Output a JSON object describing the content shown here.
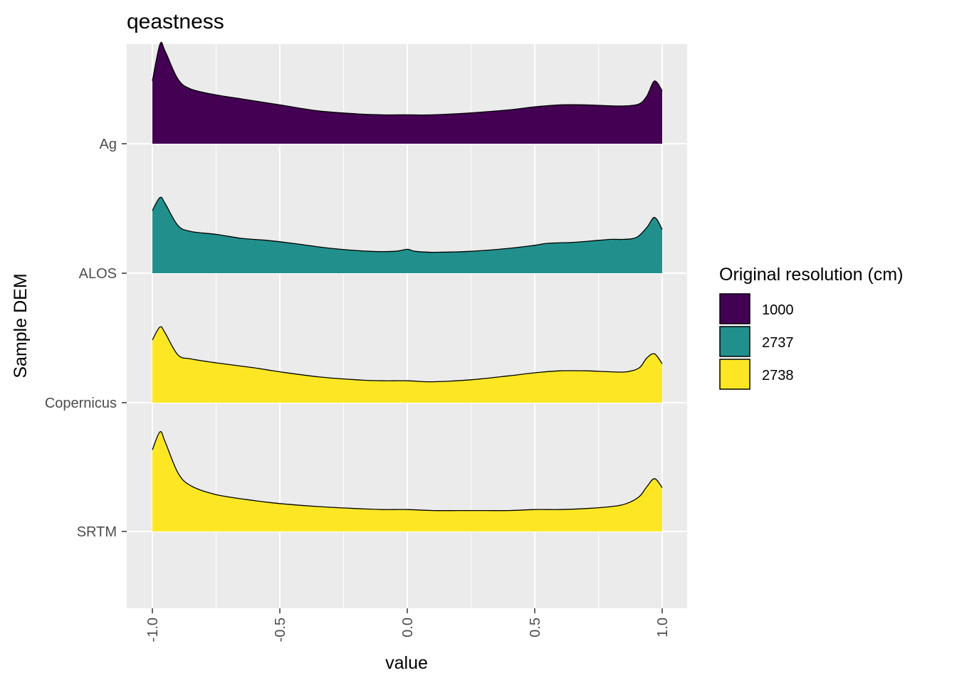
{
  "chart_data": {
    "type": "area",
    "title": "qeastness",
    "xlabel": "value",
    "ylabel": "Sample DEM",
    "xlim": [
      -1.1,
      1.1
    ],
    "x_ticks": [
      -1.0,
      -0.5,
      0.0,
      0.5,
      1.0
    ],
    "x_tick_labels": [
      "-1.0",
      "-0.5",
      "0.0",
      "0.5",
      "1.0"
    ],
    "grid": true,
    "legend": {
      "title": "Original resolution (cm)",
      "position": "right",
      "items": [
        {
          "label": "1000",
          "color": "#440154"
        },
        {
          "label": "2737",
          "color": "#21908C"
        },
        {
          "label": "2738",
          "color": "#FDE725"
        }
      ]
    },
    "ridges": [
      {
        "name": "Ag",
        "color": "#440154",
        "x": [
          -1.0,
          -0.97,
          -0.95,
          -0.9,
          -0.85,
          -0.75,
          -0.65,
          -0.5,
          -0.35,
          -0.2,
          -0.1,
          0.0,
          0.1,
          0.25,
          0.4,
          0.5,
          0.6,
          0.7,
          0.8,
          0.86,
          0.91,
          0.94,
          0.97,
          1.0
        ],
        "y": [
          0.63,
          1.0,
          0.93,
          0.65,
          0.55,
          0.49,
          0.45,
          0.39,
          0.33,
          0.3,
          0.29,
          0.29,
          0.29,
          0.31,
          0.34,
          0.37,
          0.39,
          0.39,
          0.38,
          0.38,
          0.4,
          0.48,
          0.63,
          0.53
        ]
      },
      {
        "name": "ALOS",
        "color": "#21908C",
        "x": [
          -1.0,
          -0.97,
          -0.95,
          -0.9,
          -0.85,
          -0.75,
          -0.65,
          -0.55,
          -0.45,
          -0.3,
          -0.15,
          -0.05,
          0.0,
          0.03,
          0.1,
          0.25,
          0.4,
          0.5,
          0.55,
          0.65,
          0.75,
          0.8,
          0.85,
          0.9,
          0.94,
          0.97,
          1.0
        ],
        "y": [
          0.63,
          0.76,
          0.7,
          0.48,
          0.42,
          0.39,
          0.35,
          0.33,
          0.3,
          0.25,
          0.22,
          0.22,
          0.24,
          0.22,
          0.21,
          0.22,
          0.25,
          0.28,
          0.3,
          0.31,
          0.33,
          0.34,
          0.34,
          0.36,
          0.46,
          0.56,
          0.44
        ]
      },
      {
        "name": "Copernicus",
        "color": "#FDE725",
        "x": [
          -1.0,
          -0.97,
          -0.95,
          -0.9,
          -0.85,
          -0.75,
          -0.6,
          -0.5,
          -0.35,
          -0.2,
          -0.1,
          0.0,
          0.1,
          0.25,
          0.4,
          0.5,
          0.6,
          0.7,
          0.8,
          0.86,
          0.91,
          0.94,
          0.97,
          1.0
        ],
        "y": [
          0.63,
          0.76,
          0.7,
          0.48,
          0.44,
          0.4,
          0.35,
          0.31,
          0.26,
          0.23,
          0.22,
          0.22,
          0.21,
          0.23,
          0.27,
          0.3,
          0.32,
          0.32,
          0.31,
          0.31,
          0.35,
          0.45,
          0.49,
          0.39
        ]
      },
      {
        "name": "SRTM",
        "color": "#FDE725",
        "x": [
          -1.0,
          -0.97,
          -0.95,
          -0.9,
          -0.85,
          -0.75,
          -0.6,
          -0.5,
          -0.35,
          -0.2,
          -0.1,
          0.0,
          0.1,
          0.25,
          0.4,
          0.5,
          0.6,
          0.7,
          0.8,
          0.86,
          0.91,
          0.94,
          0.97,
          1.0
        ],
        "y": [
          0.82,
          1.0,
          0.9,
          0.59,
          0.46,
          0.37,
          0.31,
          0.28,
          0.25,
          0.23,
          0.22,
          0.22,
          0.21,
          0.21,
          0.21,
          0.22,
          0.22,
          0.23,
          0.25,
          0.28,
          0.35,
          0.45,
          0.53,
          0.44
        ]
      }
    ]
  }
}
